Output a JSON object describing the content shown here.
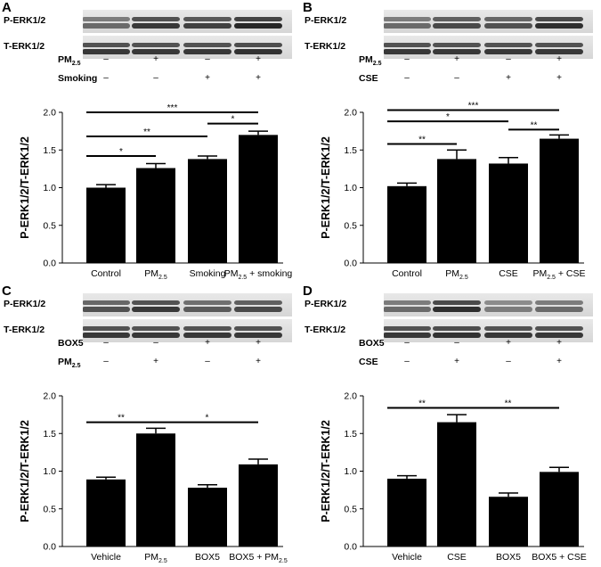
{
  "panels": [
    {
      "letter": "A",
      "blots": [
        "P-ERK1/2",
        "T-ERK1/2"
      ],
      "treatments": [
        {
          "label": "PM",
          "sub": "2.5",
          "marks": [
            "–",
            "+",
            "–",
            "+"
          ]
        },
        {
          "label": "Smoking",
          "sub": "",
          "marks": [
            "–",
            "–",
            "+",
            "+"
          ]
        }
      ],
      "band_intensity": [
        [
          0.55,
          0.85,
          0.8,
          0.95
        ],
        [
          0.85,
          0.85,
          0.85,
          0.88
        ]
      ]
    },
    {
      "letter": "B",
      "blots": [
        "P-ERK1/2",
        "T-ERK1/2"
      ],
      "treatments": [
        {
          "label": "PM",
          "sub": "2.5",
          "marks": [
            "–",
            "+",
            "–",
            "+"
          ]
        },
        {
          "label": "CSE",
          "sub": "",
          "marks": [
            "–",
            "–",
            "+",
            "+"
          ]
        }
      ],
      "band_intensity": [
        [
          0.55,
          0.75,
          0.7,
          0.9
        ],
        [
          0.85,
          0.85,
          0.85,
          0.85
        ]
      ]
    },
    {
      "letter": "C",
      "blots": [
        "P-ERK1/2",
        "T-ERK1/2"
      ],
      "treatments": [
        {
          "label": "BOX5",
          "sub": "",
          "marks": [
            "–",
            "–",
            "+",
            "+"
          ]
        },
        {
          "label": "PM",
          "sub": "2.5",
          "marks": [
            "–",
            "+",
            "–",
            "+"
          ]
        }
      ],
      "band_intensity": [
        [
          0.7,
          0.85,
          0.65,
          0.75
        ],
        [
          0.85,
          0.85,
          0.85,
          0.85
        ]
      ]
    },
    {
      "letter": "D",
      "blots": [
        "P-ERK1/2",
        "T-ERK1/2"
      ],
      "treatments": [
        {
          "label": "BOX5",
          "sub": "",
          "marks": [
            "–",
            "–",
            "+",
            "+"
          ]
        },
        {
          "label": "CSE",
          "sub": "",
          "marks": [
            "–",
            "+",
            "–",
            "+"
          ]
        }
      ],
      "band_intensity": [
        [
          0.55,
          0.9,
          0.45,
          0.55
        ],
        [
          0.85,
          0.88,
          0.85,
          0.85
        ]
      ]
    }
  ],
  "chart_data": [
    {
      "type": "bar",
      "ylabel": "P-ERK1/2/T-ERK1/2",
      "ylim": [
        0,
        2.0
      ],
      "yticks": [
        "0.0",
        "0.5",
        "1.0",
        "1.5",
        "2.0"
      ],
      "categories": [
        {
          "main": "Control",
          "sub": "",
          "tail": ""
        },
        {
          "main": "PM",
          "sub": "2.5",
          "tail": ""
        },
        {
          "main": "Smoking",
          "sub": "",
          "tail": ""
        },
        {
          "main": "PM",
          "sub": "2.5",
          "tail": " + smoking"
        }
      ],
      "values": [
        1.0,
        1.26,
        1.38,
        1.7
      ],
      "errors": [
        0.04,
        0.06,
        0.04,
        0.05
      ],
      "significance": [
        {
          "from": 0,
          "to": 3,
          "y": 2.0,
          "label": "***"
        },
        {
          "from": 0,
          "to": 2,
          "y": 1.68,
          "label": "**"
        },
        {
          "from": 2,
          "to": 3,
          "y": 1.85,
          "label": "*"
        },
        {
          "from": 0,
          "to": 1,
          "y": 1.42,
          "label": "*"
        }
      ],
      "bar_color": "#000000"
    },
    {
      "type": "bar",
      "ylabel": "P-ERK1/2/T-ERK1/2",
      "ylim": [
        0,
        2.0
      ],
      "yticks": [
        "0.0",
        "0.5",
        "1.0",
        "1.5",
        "2.0"
      ],
      "categories": [
        {
          "main": "Control",
          "sub": "",
          "tail": ""
        },
        {
          "main": "PM",
          "sub": "2.5",
          "tail": ""
        },
        {
          "main": "CSE",
          "sub": "",
          "tail": ""
        },
        {
          "main": "PM",
          "sub": "2.5",
          "tail": " + CSE"
        }
      ],
      "values": [
        1.02,
        1.38,
        1.32,
        1.65
      ],
      "errors": [
        0.04,
        0.12,
        0.08,
        0.05
      ],
      "significance": [
        {
          "from": 0,
          "to": 3,
          "y": 2.03,
          "label": "***"
        },
        {
          "from": 0,
          "to": 2,
          "y": 1.88,
          "label": "*"
        },
        {
          "from": 2,
          "to": 3,
          "y": 1.77,
          "label": "**"
        },
        {
          "from": 0,
          "to": 1,
          "y": 1.58,
          "label": "**"
        }
      ],
      "bar_color": "#000000"
    },
    {
      "type": "bar",
      "ylabel": "P-ERK1/2/T-ERK1/2",
      "ylim": [
        0,
        2.0
      ],
      "yticks": [
        "0.0",
        "0.5",
        "1.0",
        "1.5",
        "2.0"
      ],
      "categories": [
        {
          "main": "Vehicle",
          "sub": "",
          "tail": ""
        },
        {
          "main": "PM",
          "sub": "2.5",
          "tail": ""
        },
        {
          "main": "BOX5",
          "sub": "",
          "tail": ""
        },
        {
          "main": "BOX5 + PM",
          "sub": "2.5",
          "tail": ""
        }
      ],
      "values": [
        0.89,
        1.5,
        0.78,
        1.09
      ],
      "errors": [
        0.03,
        0.07,
        0.04,
        0.07
      ],
      "significance": [
        {
          "from": 0,
          "to": 1,
          "y": 1.65,
          "label": "**"
        },
        {
          "from": 1,
          "to": 3,
          "y": 1.65,
          "label": "*"
        }
      ],
      "bar_color": "#000000"
    },
    {
      "type": "bar",
      "ylabel": "P-ERK1/2/T-ERK1/2",
      "ylim": [
        0,
        2.0
      ],
      "yticks": [
        "0.0",
        "0.5",
        "1.0",
        "1.5",
        "2.0"
      ],
      "categories": [
        {
          "main": "Vehicle",
          "sub": "",
          "tail": ""
        },
        {
          "main": "CSE",
          "sub": "",
          "tail": ""
        },
        {
          "main": "BOX5",
          "sub": "",
          "tail": ""
        },
        {
          "main": "BOX5 + CSE",
          "sub": "",
          "tail": ""
        }
      ],
      "values": [
        0.9,
        1.65,
        0.66,
        0.99
      ],
      "errors": [
        0.04,
        0.1,
        0.05,
        0.06
      ],
      "significance": [
        {
          "from": 0,
          "to": 1,
          "y": 1.84,
          "label": "**"
        },
        {
          "from": 1,
          "to": 3,
          "y": 1.84,
          "label": "**"
        }
      ],
      "bar_color": "#000000"
    }
  ]
}
